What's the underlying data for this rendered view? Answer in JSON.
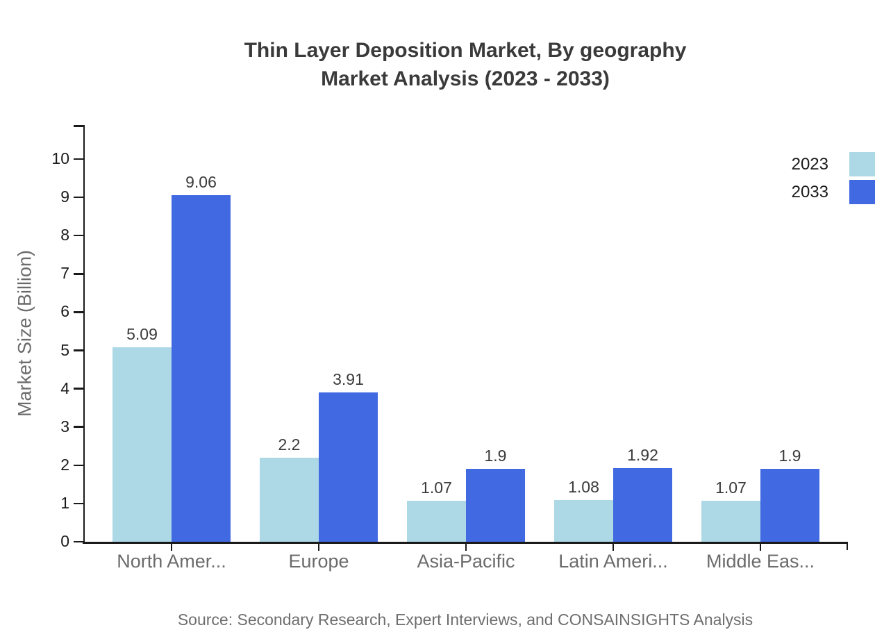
{
  "title": {
    "line1": "Thin Layer Deposition Market, By geography",
    "line2": "Market Analysis (2023 - 2033)"
  },
  "source": "Source: Secondary Research, Expert Interviews, and CONSAINSIGHTS Analysis",
  "legend": [
    {
      "label": "2023",
      "color": "#ADD8E6"
    },
    {
      "label": "2033",
      "color": "#4169E1"
    }
  ],
  "colors": {
    "series_2023": "#ADD8E6",
    "series_2033": "#4169E1",
    "axis": "#1a1a1a",
    "title_text": "#3a3a3a",
    "muted_text": "#6b6b6b"
  },
  "chart_data": {
    "type": "bar",
    "categories": [
      "North Amer...",
      "Europe",
      "Asia-Pacific",
      "Latin Ameri...",
      "Middle Eas..."
    ],
    "series": [
      {
        "name": "2023",
        "color": "#ADD8E6",
        "values": [
          5.09,
          2.2,
          1.07,
          1.08,
          1.07
        ]
      },
      {
        "name": "2033",
        "color": "#4169E1",
        "values": [
          9.06,
          3.91,
          1.9,
          1.92,
          1.9
        ]
      }
    ],
    "title": "Thin Layer Deposition Market, By geography Market Analysis (2023 - 2033)",
    "xlabel": "",
    "ylabel": "Market Size (Billion)",
    "yticks": [
      0,
      1,
      2,
      3,
      4,
      5,
      6,
      7,
      8,
      9,
      10
    ],
    "ylim": [
      0,
      10
    ],
    "grid": false,
    "legend_position": "top-right",
    "value_labels_shown": true
  }
}
